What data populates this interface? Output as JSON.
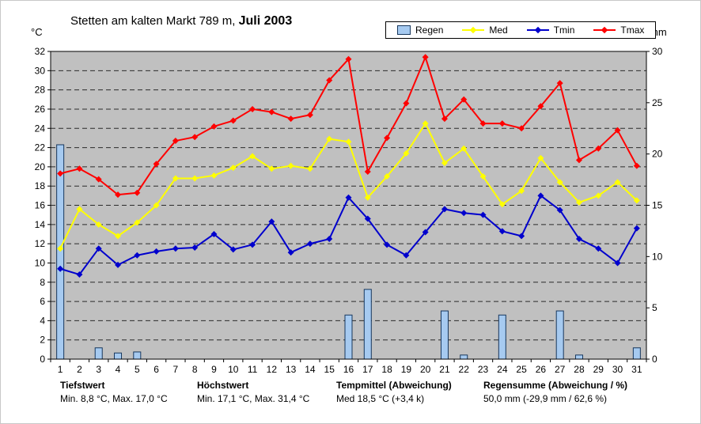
{
  "header": {
    "title_regular": "Stetten am kalten Markt 789 m,",
    "title_bold": "Juli 2003",
    "left_axis_unit": "°C",
    "right_axis_unit": "mm"
  },
  "legend": {
    "items": [
      "Regen",
      "Med",
      "Tmin",
      "Tmax"
    ]
  },
  "chart_data": {
    "type": "composite",
    "title": "Stetten am kalten Markt 789 m, Juli 2003",
    "x": [
      1,
      2,
      3,
      4,
      5,
      6,
      7,
      8,
      9,
      10,
      11,
      12,
      13,
      14,
      15,
      16,
      17,
      18,
      19,
      20,
      21,
      22,
      23,
      24,
      25,
      26,
      27,
      28,
      29,
      30,
      31
    ],
    "left_axis": {
      "label": "°C",
      "min": 0,
      "max": 32,
      "tick_step": 2
    },
    "right_axis": {
      "label": "mm",
      "min": 0,
      "max": 30,
      "tick_step": 5
    },
    "plot_background": "#C0C0C0",
    "grid": "horizontal-dashed",
    "legend_position": "top-right",
    "bar_series": {
      "name": "Regen",
      "axis": "right",
      "unit": "mm",
      "fill": "#A6CAF0",
      "stroke": "#17375D",
      "values": [
        20.9,
        0,
        1.1,
        0.6,
        0.7,
        0,
        0,
        0,
        0,
        0,
        0,
        0,
        0,
        0,
        0,
        4.3,
        6.8,
        0,
        0,
        0,
        4.7,
        0.4,
        0,
        4.3,
        0,
        0,
        4.7,
        0.4,
        0,
        0,
        1.1
      ]
    },
    "line_series": [
      {
        "name": "Med",
        "axis": "left",
        "unit": "°C",
        "color": "#FFFF00",
        "values": [
          11.5,
          15.6,
          14.0,
          12.8,
          14.2,
          16.0,
          18.8,
          18.8,
          19.1,
          19.9,
          21.1,
          19.8,
          20.1,
          19.8,
          22.9,
          22.6,
          16.8,
          19.0,
          21.4,
          24.5,
          20.4,
          21.9,
          19.0,
          16.1,
          17.5,
          20.9,
          18.4,
          16.3,
          17.0,
          18.4,
          16.5
        ]
      },
      {
        "name": "Tmin",
        "axis": "left",
        "unit": "°C",
        "color": "#0000CD",
        "values": [
          9.4,
          8.8,
          11.5,
          9.8,
          10.8,
          11.2,
          11.5,
          11.6,
          13.0,
          11.4,
          11.9,
          14.3,
          11.1,
          12.0,
          12.5,
          16.8,
          14.6,
          11.9,
          10.8,
          13.2,
          15.6,
          15.2,
          15.0,
          13.3,
          12.8,
          17.0,
          15.5,
          12.5,
          11.5,
          10.0,
          13.6
        ]
      },
      {
        "name": "Tmax",
        "axis": "left",
        "unit": "°C",
        "color": "#FF0000",
        "values": [
          19.3,
          19.8,
          18.7,
          17.1,
          17.3,
          20.3,
          22.7,
          23.1,
          24.2,
          24.8,
          26.0,
          25.7,
          25.0,
          25.4,
          29.0,
          31.2,
          19.5,
          23.0,
          26.6,
          31.4,
          25.0,
          27.0,
          24.5,
          24.5,
          24.0,
          26.3,
          28.7,
          20.7,
          21.9,
          23.8,
          20.1
        ]
      }
    ]
  },
  "footer": {
    "blocks": [
      {
        "heading": "Tiefstwert",
        "detail": "Min. 8,8 °C, Max. 17,0 °C"
      },
      {
        "heading": "Höchstwert",
        "detail": "Min. 17,1 °C, Max. 31,4 °C"
      },
      {
        "heading": "Tempmittel (Abweichung)",
        "detail": "Med 18,5 °C (+3,4 k)"
      },
      {
        "heading": "Regensumme (Abweichung / %)",
        "detail": "50,0 mm (-29,9 mm / 62,6 %)"
      }
    ]
  }
}
